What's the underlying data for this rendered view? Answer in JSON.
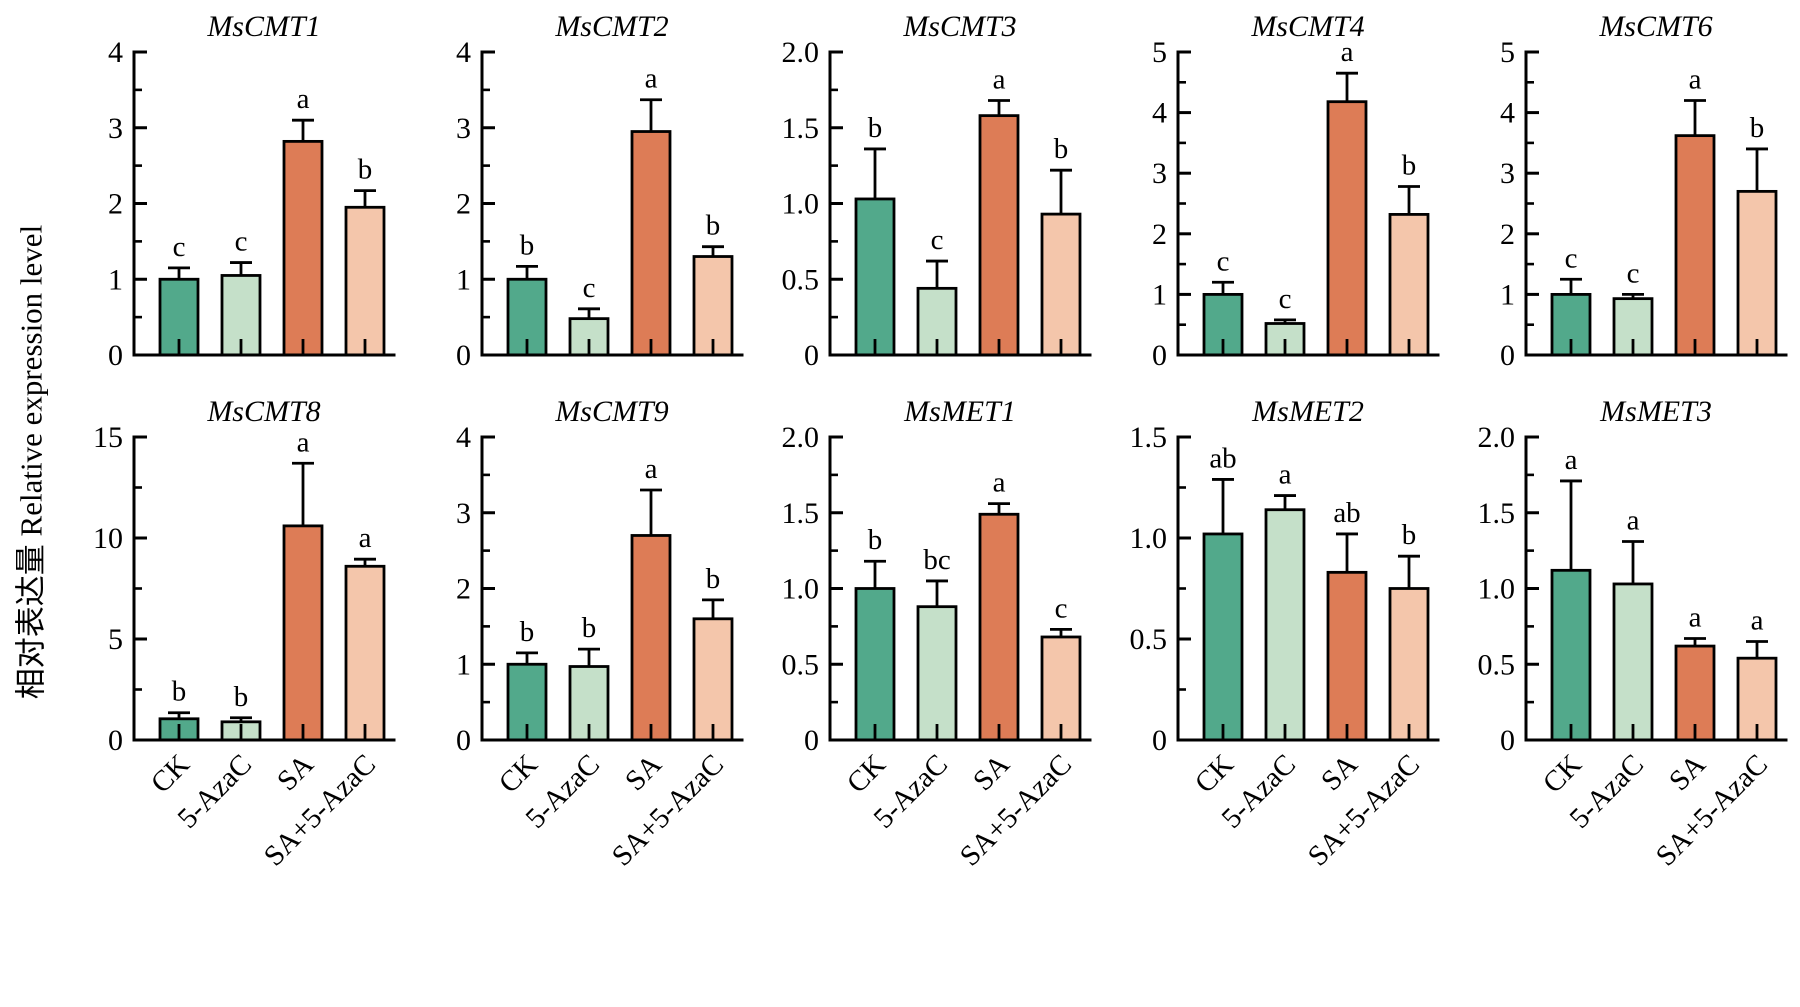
{
  "figure": {
    "y_axis_label": "相对表达量 Relative expression level",
    "categories": [
      "CK",
      "5-AzaC",
      "SA",
      "SA+5-AzaC"
    ],
    "bar_colors": [
      "#52A98B",
      "#C5E0C9",
      "#DD7C56",
      "#F4C6AB"
    ],
    "bar_border_color": "#000000",
    "axis_color": "#000000"
  },
  "chart_data": [
    {
      "type": "bar",
      "title": "MsCMT1",
      "ylim": [
        0,
        4
      ],
      "ystep": 1,
      "tick_labels": [
        "0",
        "1",
        "2",
        "3",
        "4"
      ],
      "categories": [
        "CK",
        "5-AzaC",
        "SA",
        "SA+5-AzaC"
      ],
      "values": [
        1.0,
        1.05,
        2.82,
        1.95
      ],
      "errors": [
        0.15,
        0.17,
        0.28,
        0.22
      ],
      "letters": [
        "c",
        "c",
        "a",
        "b"
      ]
    },
    {
      "type": "bar",
      "title": "MsCMT2",
      "ylim": [
        0,
        4
      ],
      "ystep": 1,
      "tick_labels": [
        "0",
        "1",
        "2",
        "3",
        "4"
      ],
      "categories": [
        "CK",
        "5-AzaC",
        "SA",
        "SA+5-AzaC"
      ],
      "values": [
        1.0,
        0.48,
        2.95,
        1.3
      ],
      "errors": [
        0.17,
        0.13,
        0.42,
        0.13
      ],
      "letters": [
        "b",
        "c",
        "a",
        "b"
      ]
    },
    {
      "type": "bar",
      "title": "MsCMT3",
      "ylim": [
        0,
        2.0
      ],
      "ystep": 0.5,
      "tick_labels": [
        "0",
        "0.5",
        "1.0",
        "1.5",
        "2.0"
      ],
      "categories": [
        "CK",
        "5-AzaC",
        "SA",
        "SA+5-AzaC"
      ],
      "values": [
        1.03,
        0.44,
        1.58,
        0.93
      ],
      "errors": [
        0.33,
        0.18,
        0.1,
        0.29
      ],
      "letters": [
        "b",
        "c",
        "a",
        "b"
      ]
    },
    {
      "type": "bar",
      "title": "MsCMT4",
      "ylim": [
        0,
        5
      ],
      "ystep": 1,
      "tick_labels": [
        "0",
        "1",
        "2",
        "3",
        "4",
        "5"
      ],
      "categories": [
        "CK",
        "5-AzaC",
        "SA",
        "SA+5-AzaC"
      ],
      "values": [
        1.0,
        0.52,
        4.18,
        2.32
      ],
      "errors": [
        0.2,
        0.06,
        0.47,
        0.46
      ],
      "letters": [
        "c",
        "c",
        "a",
        "b"
      ]
    },
    {
      "type": "bar",
      "title": "MsCMT6",
      "ylim": [
        0,
        5
      ],
      "ystep": 1,
      "tick_labels": [
        "0",
        "1",
        "2",
        "3",
        "4",
        "5"
      ],
      "categories": [
        "CK",
        "5-AzaC",
        "SA",
        "SA+5-AzaC"
      ],
      "values": [
        1.0,
        0.93,
        3.62,
        2.7
      ],
      "errors": [
        0.25,
        0.07,
        0.58,
        0.7
      ],
      "letters": [
        "c",
        "c",
        "a",
        "b"
      ]
    },
    {
      "type": "bar",
      "title": "MsCMT8",
      "ylim": [
        0,
        15
      ],
      "ystep": 5,
      "tick_labels": [
        "0",
        "5",
        "10",
        "15"
      ],
      "categories": [
        "CK",
        "5-AzaC",
        "SA",
        "SA+5-AzaC"
      ],
      "values": [
        1.05,
        0.9,
        10.6,
        8.6
      ],
      "errors": [
        0.3,
        0.2,
        3.1,
        0.35
      ],
      "letters": [
        "b",
        "b",
        "a",
        "a"
      ]
    },
    {
      "type": "bar",
      "title": "MsCMT9",
      "ylim": [
        0,
        4
      ],
      "ystep": 1,
      "tick_labels": [
        "0",
        "1",
        "2",
        "3",
        "4"
      ],
      "categories": [
        "CK",
        "5-AzaC",
        "SA",
        "SA+5-AzaC"
      ],
      "values": [
        1.0,
        0.97,
        2.7,
        1.6
      ],
      "errors": [
        0.15,
        0.23,
        0.6,
        0.25
      ],
      "letters": [
        "b",
        "b",
        "a",
        "b"
      ]
    },
    {
      "type": "bar",
      "title": "MsMET1",
      "ylim": [
        0,
        2.0
      ],
      "ystep": 0.5,
      "tick_labels": [
        "0",
        "0.5",
        "1.0",
        "1.5",
        "2.0"
      ],
      "categories": [
        "CK",
        "5-AzaC",
        "SA",
        "SA+5-AzaC"
      ],
      "values": [
        1.0,
        0.88,
        1.49,
        0.68
      ],
      "errors": [
        0.18,
        0.17,
        0.07,
        0.05
      ],
      "letters": [
        "b",
        "bc",
        "a",
        "c"
      ]
    },
    {
      "type": "bar",
      "title": "MsMET2",
      "ylim": [
        0,
        1.5
      ],
      "ystep": 0.5,
      "tick_labels": [
        "0",
        "0.5",
        "1.0",
        "1.5"
      ],
      "categories": [
        "CK",
        "5-AzaC",
        "SA",
        "SA+5-AzaC"
      ],
      "values": [
        1.02,
        1.14,
        0.83,
        0.75
      ],
      "errors": [
        0.27,
        0.07,
        0.19,
        0.16
      ],
      "letters": [
        "ab",
        "a",
        "ab",
        "b"
      ]
    },
    {
      "type": "bar",
      "title": "MsMET3",
      "ylim": [
        0,
        2.0
      ],
      "ystep": 0.5,
      "tick_labels": [
        "0",
        "0.5",
        "1.0",
        "1.5",
        "2.0"
      ],
      "categories": [
        "CK",
        "5-AzaC",
        "SA",
        "SA+5-AzaC"
      ],
      "values": [
        1.12,
        1.03,
        0.62,
        0.54
      ],
      "errors": [
        0.59,
        0.28,
        0.05,
        0.11
      ],
      "letters": [
        "a",
        "a",
        "a",
        "a"
      ]
    }
  ]
}
